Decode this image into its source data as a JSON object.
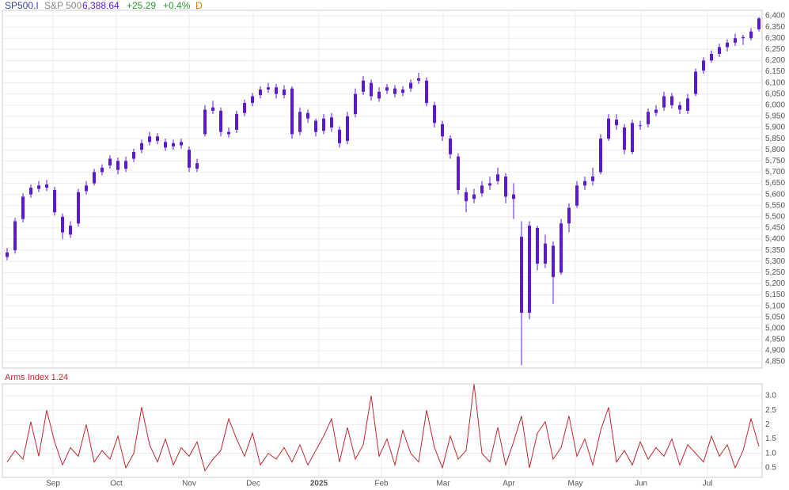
{
  "header": {
    "symbol": "SP500.I",
    "name": "S&P 500",
    "last": "6,388.64",
    "change": "+25.29",
    "change_pct": "+0.4%",
    "period": "D"
  },
  "chart_data": [
    {
      "type": "candlestick",
      "color": "#5a19d6",
      "xlim": [
        -0.6,
        95.4
      ],
      "ylim": [
        4822,
        6425
      ],
      "grid": true,
      "open": [
        5320,
        5350,
        5490,
        5600,
        5625,
        5645,
        5620,
        5500,
        5420,
        5470,
        5615,
        5650,
        5700,
        5730,
        5750,
        5715,
        5760,
        5800,
        5835,
        5860,
        5835,
        5815,
        5835,
        5800,
        5715,
        5870,
        5975,
        5975,
        5870,
        5890,
        5965,
        6010,
        6045,
        6070,
        6080,
        6045,
        6075,
        5880,
        5965,
        5930,
        5885,
        5945,
        5890,
        5840,
        5960,
        6060,
        6100,
        6030,
        6065,
        6075,
        6055,
        6075,
        6110,
        6110,
        6000,
        5915,
        5850,
        5770,
        5610,
        5580,
        5605,
        5640,
        5660,
        5680,
        5580,
        5410,
        5070,
        5450,
        5290,
        5370,
        5250,
        5470,
        5550,
        5640,
        5660,
        5700,
        5850,
        5935,
        5900,
        5790,
        5910,
        5915,
        5965,
        5990,
        6040,
        6000,
        5975,
        6050,
        6155,
        6200,
        6230,
        6260,
        6280,
        6305,
        6300,
        6340
      ],
      "high": [
        5360,
        5495,
        5605,
        5645,
        5660,
        5665,
        5635,
        5515,
        5480,
        5625,
        5660,
        5715,
        5735,
        5775,
        5765,
        5770,
        5805,
        5845,
        5880,
        5875,
        5850,
        5845,
        5850,
        5815,
        5760,
        6000,
        6020,
        5990,
        5900,
        5975,
        6025,
        6055,
        6085,
        6100,
        6095,
        6090,
        6085,
        5990,
        5980,
        5940,
        5960,
        5965,
        5905,
        5970,
        6075,
        6130,
        6115,
        6080,
        6095,
        6090,
        6085,
        6115,
        6145,
        6125,
        6015,
        5930,
        5865,
        5785,
        5630,
        5625,
        5660,
        5680,
        5720,
        5695,
        5650,
        5480,
        5480,
        5460,
        5420,
        5390,
        5490,
        5560,
        5660,
        5680,
        5720,
        5870,
        5960,
        5960,
        5915,
        5935,
        5930,
        5985,
        6000,
        6060,
        6055,
        6015,
        6050,
        6165,
        6215,
        6245,
        6275,
        6295,
        6320,
        6315,
        6345,
        6395
      ],
      "low": [
        5305,
        5335,
        5475,
        5585,
        5610,
        5615,
        5505,
        5400,
        5405,
        5455,
        5600,
        5640,
        5685,
        5715,
        5690,
        5700,
        5745,
        5785,
        5820,
        5825,
        5795,
        5800,
        5805,
        5700,
        5700,
        5860,
        5960,
        5860,
        5855,
        5875,
        5950,
        5995,
        6030,
        6055,
        6030,
        6030,
        5850,
        5865,
        5920,
        5860,
        5870,
        5880,
        5810,
        5825,
        5945,
        6045,
        6020,
        6015,
        6050,
        6035,
        6040,
        6060,
        6095,
        5995,
        5900,
        5840,
        5760,
        5600,
        5520,
        5560,
        5590,
        5620,
        5645,
        5560,
        5490,
        4835,
        5040,
        5260,
        5270,
        5110,
        5240,
        5430,
        5540,
        5620,
        5640,
        5690,
        5840,
        5890,
        5780,
        5780,
        5890,
        5900,
        5950,
        5975,
        5985,
        5960,
        5960,
        6040,
        6140,
        6190,
        6215,
        6240,
        6265,
        6270,
        6290,
        6330
      ],
      "close": [
        5340,
        5480,
        5590,
        5630,
        5640,
        5630,
        5520,
        5430,
        5460,
        5610,
        5640,
        5700,
        5720,
        5760,
        5710,
        5750,
        5790,
        5830,
        5860,
        5840,
        5810,
        5830,
        5820,
        5720,
        5740,
        5980,
        5990,
        5880,
        5880,
        5960,
        6010,
        6040,
        6070,
        6080,
        6050,
        6070,
        5870,
        5970,
        5940,
        5880,
        5940,
        5900,
        5830,
        5950,
        6050,
        6110,
        6040,
        6060,
        6080,
        6050,
        6070,
        6100,
        6120,
        6010,
        5920,
        5860,
        5780,
        5620,
        5570,
        5600,
        5640,
        5650,
        5690,
        5590,
        5600,
        5070,
        5460,
        5290,
        5380,
        5230,
        5470,
        5540,
        5640,
        5660,
        5680,
        5850,
        5940,
        5910,
        5800,
        5920,
        5910,
        5970,
        5980,
        6040,
        6000,
        5980,
        6030,
        6150,
        6200,
        6230,
        6260,
        6280,
        6300,
        6300,
        6330,
        6388.64
      ],
      "yticks": [
        {
          "value": 4850,
          "label": "4,850"
        },
        {
          "value": 4900,
          "label": "4,900"
        },
        {
          "value": 4950,
          "label": "4,950"
        },
        {
          "value": 5000,
          "label": "5,000"
        },
        {
          "value": 5050,
          "label": "5,050"
        },
        {
          "value": 5100,
          "label": "5,100"
        },
        {
          "value": 5150,
          "label": "5,150"
        },
        {
          "value": 5200,
          "label": "5,200"
        },
        {
          "value": 5250,
          "label": "5,250"
        },
        {
          "value": 5300,
          "label": "5,300"
        },
        {
          "value": 5350,
          "label": "5,350"
        },
        {
          "value": 5400,
          "label": "5,400"
        },
        {
          "value": 5450,
          "label": "5,450"
        },
        {
          "value": 5500,
          "label": "5,500"
        },
        {
          "value": 5550,
          "label": "5,550"
        },
        {
          "value": 5600,
          "label": "5,600"
        },
        {
          "value": 5650,
          "label": "5,650"
        },
        {
          "value": 5700,
          "label": "5,700"
        },
        {
          "value": 5750,
          "label": "5,750"
        },
        {
          "value": 5800,
          "label": "5,800"
        },
        {
          "value": 5850,
          "label": "5,850"
        },
        {
          "value": 5900,
          "label": "5,900"
        },
        {
          "value": 5950,
          "label": "5,950"
        },
        {
          "value": 6000,
          "label": "6,000"
        },
        {
          "value": 6050,
          "label": "6,050"
        },
        {
          "value": 6100,
          "label": "6,100"
        },
        {
          "value": 6150,
          "label": "6,150"
        },
        {
          "value": 6200,
          "label": "6,200"
        },
        {
          "value": 6250,
          "label": "6,250"
        },
        {
          "value": 6300,
          "label": "6,300"
        },
        {
          "value": 6350,
          "label": "6,350"
        },
        {
          "value": 6400,
          "label": "6,400"
        }
      ]
    },
    {
      "type": "line",
      "title": "Arms Index 1.24",
      "color": "#c0282d",
      "xlim": [
        -0.6,
        95.4
      ],
      "ylim": [
        0.17,
        3.41
      ],
      "grid": true,
      "values": [
        0.7,
        1.1,
        0.8,
        2.1,
        0.9,
        2.5,
        1.4,
        0.6,
        1.2,
        0.9,
        2.0,
        0.7,
        1.1,
        0.8,
        1.6,
        0.5,
        1.0,
        2.6,
        1.3,
        0.7,
        1.5,
        0.6,
        1.2,
        0.9,
        1.4,
        0.4,
        0.8,
        1.1,
        2.2,
        1.5,
        0.9,
        1.7,
        0.6,
        1.0,
        0.8,
        1.2,
        0.7,
        1.3,
        0.6,
        1.1,
        1.6,
        2.2,
        0.7,
        1.9,
        0.8,
        1.3,
        3.0,
        0.9,
        1.5,
        0.6,
        1.8,
        1.0,
        0.7,
        2.5,
        1.2,
        0.5,
        1.6,
        0.8,
        1.1,
        3.4,
        1.0,
        0.7,
        1.9,
        0.6,
        1.4,
        2.3,
        0.5,
        1.7,
        2.1,
        0.8,
        1.2,
        2.3,
        0.9,
        1.5,
        0.6,
        1.8,
        2.6,
        0.7,
        1.1,
        0.6,
        1.4,
        0.8,
        1.2,
        0.9,
        1.5,
        0.6,
        1.3,
        1.0,
        0.7,
        1.6,
        0.9,
        1.3,
        0.5,
        1.1,
        2.2,
        1.24
      ],
      "yticks": [
        0.5,
        {
          "value": 1.0,
          "label": "1.0"
        },
        1.5,
        2,
        2.5,
        {
          "value": 3.0,
          "label": "3.0"
        }
      ],
      "xticks": [
        {
          "value": 5.8,
          "label": "Sep"
        },
        {
          "value": 13.8,
          "label": "Oct"
        },
        {
          "value": 23,
          "label": "Nov"
        },
        {
          "value": 31.1,
          "label": "Dec"
        },
        {
          "value": 39.4,
          "label": "2025",
          "bold": true
        },
        {
          "value": 47.3,
          "label": "Feb"
        },
        {
          "value": 55.1,
          "label": "Mar"
        },
        {
          "value": 63.4,
          "label": "Apr"
        },
        {
          "value": 71.8,
          "label": "May"
        },
        {
          "value": 80.1,
          "label": "Jun"
        },
        {
          "value": 88.5,
          "label": "Jul"
        }
      ]
    }
  ]
}
